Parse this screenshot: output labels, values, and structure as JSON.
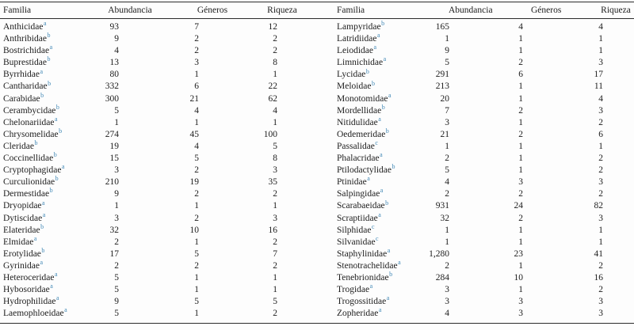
{
  "table": {
    "columns": [
      "Familia",
      "Abundancia",
      "Géneros",
      "Riqueza"
    ],
    "superscript_color": "#3f87b5",
    "left_rows": [
      {
        "familia": "Anthicidae",
        "sup": "a",
        "abundancia": "93",
        "generos": "7",
        "riqueza": "12"
      },
      {
        "familia": "Anthribidae",
        "sup": "b",
        "abundancia": "9",
        "generos": "2",
        "riqueza": "2"
      },
      {
        "familia": "Bostrichidae",
        "sup": "a",
        "abundancia": "4",
        "generos": "2",
        "riqueza": "2"
      },
      {
        "familia": "Buprestidae",
        "sup": "b",
        "abundancia": "13",
        "generos": "3",
        "riqueza": "8"
      },
      {
        "familia": "Byrrhidae",
        "sup": "a",
        "abundancia": "80",
        "generos": "1",
        "riqueza": "1"
      },
      {
        "familia": "Cantharidae",
        "sup": "b",
        "abundancia": "332",
        "generos": "6",
        "riqueza": "22"
      },
      {
        "familia": "Carabidae",
        "sup": "b",
        "abundancia": "300",
        "generos": "21",
        "riqueza": "62"
      },
      {
        "familia": "Cerambycidae",
        "sup": "b",
        "abundancia": "5",
        "generos": "4",
        "riqueza": "4"
      },
      {
        "familia": "Chelonariidae",
        "sup": "a",
        "abundancia": "1",
        "generos": "1",
        "riqueza": "1"
      },
      {
        "familia": "Chrysomelidae",
        "sup": "b",
        "abundancia": "274",
        "generos": "45",
        "riqueza": "100"
      },
      {
        "familia": "Cleridae",
        "sup": "b",
        "abundancia": "19",
        "generos": "4",
        "riqueza": "5"
      },
      {
        "familia": "Coccinellidae",
        "sup": "b",
        "abundancia": "15",
        "generos": "5",
        "riqueza": "8"
      },
      {
        "familia": "Cryptophagidae",
        "sup": "a",
        "abundancia": "3",
        "generos": "2",
        "riqueza": "3"
      },
      {
        "familia": "Curculionidae",
        "sup": "b",
        "abundancia": "210",
        "generos": "19",
        "riqueza": "35"
      },
      {
        "familia": "Dermestidae",
        "sup": "b",
        "abundancia": "9",
        "generos": "2",
        "riqueza": "2"
      },
      {
        "familia": "Dryopidae",
        "sup": "a",
        "abundancia": "1",
        "generos": "1",
        "riqueza": "1"
      },
      {
        "familia": "Dytiscidae",
        "sup": "a",
        "abundancia": "3",
        "generos": "2",
        "riqueza": "3"
      },
      {
        "familia": "Elateridae",
        "sup": "b",
        "abundancia": "32",
        "generos": "10",
        "riqueza": "16"
      },
      {
        "familia": "Elmidae",
        "sup": "a",
        "abundancia": "2",
        "generos": "1",
        "riqueza": "2"
      },
      {
        "familia": "Erotylidae",
        "sup": "b",
        "abundancia": "17",
        "generos": "5",
        "riqueza": "7"
      },
      {
        "familia": "Gyrinidae",
        "sup": "a",
        "abundancia": "2",
        "generos": "2",
        "riqueza": "2"
      },
      {
        "familia": "Heteroceridae",
        "sup": "a",
        "abundancia": "5",
        "generos": "1",
        "riqueza": "1"
      },
      {
        "familia": "Hybosoridae",
        "sup": "a",
        "abundancia": "5",
        "generos": "1",
        "riqueza": "1"
      },
      {
        "familia": "Hydrophilidae",
        "sup": "a",
        "abundancia": "9",
        "generos": "5",
        "riqueza": "5"
      },
      {
        "familia": "Laemophloeidae",
        "sup": "a",
        "abundancia": "5",
        "generos": "1",
        "riqueza": "2"
      }
    ],
    "right_rows": [
      {
        "familia": "Lampyridae",
        "sup": "b",
        "abundancia": "165",
        "generos": "4",
        "riqueza": "4"
      },
      {
        "familia": "Latridiidae",
        "sup": "a",
        "abundancia": "1",
        "generos": "1",
        "riqueza": "1"
      },
      {
        "familia": "Leiodidae",
        "sup": "a",
        "abundancia": "9",
        "generos": "1",
        "riqueza": "1"
      },
      {
        "familia": "Limnichidae",
        "sup": "a",
        "abundancia": "5",
        "generos": "2",
        "riqueza": "3"
      },
      {
        "familia": "Lycidae",
        "sup": "b",
        "abundancia": "291",
        "generos": "6",
        "riqueza": "17"
      },
      {
        "familia": "Meloidae",
        "sup": "b",
        "abundancia": "213",
        "generos": "1",
        "riqueza": "11"
      },
      {
        "familia": "Monotomidae",
        "sup": "a",
        "abundancia": "20",
        "generos": "1",
        "riqueza": "4"
      },
      {
        "familia": "Mordellidae",
        "sup": "b",
        "abundancia": "7",
        "generos": "2",
        "riqueza": "3"
      },
      {
        "familia": "Nitidulidae",
        "sup": "a",
        "abundancia": "3",
        "generos": "1",
        "riqueza": "2"
      },
      {
        "familia": "Oedemeridae",
        "sup": "b",
        "abundancia": "21",
        "generos": "2",
        "riqueza": "6"
      },
      {
        "familia": "Passalidae",
        "sup": "c",
        "abundancia": "1",
        "generos": "1",
        "riqueza": "1"
      },
      {
        "familia": "Phalacridae",
        "sup": "a",
        "abundancia": "2",
        "generos": "1",
        "riqueza": "2"
      },
      {
        "familia": "Ptilodactylidae",
        "sup": "b",
        "abundancia": "5",
        "generos": "1",
        "riqueza": "2"
      },
      {
        "familia": "Ptinidae",
        "sup": "a",
        "abundancia": "4",
        "generos": "3",
        "riqueza": "3"
      },
      {
        "familia": "Salpingidae",
        "sup": "a",
        "abundancia": "2",
        "generos": "2",
        "riqueza": "2"
      },
      {
        "familia": "Scarabaeidae",
        "sup": "b",
        "abundancia": "931",
        "generos": "24",
        "riqueza": "82"
      },
      {
        "familia": "Scraptiidae",
        "sup": "a",
        "abundancia": "32",
        "generos": "2",
        "riqueza": "3"
      },
      {
        "familia": "Silphidae",
        "sup": "c",
        "abundancia": "1",
        "generos": "1",
        "riqueza": "1"
      },
      {
        "familia": "Silvanidae",
        "sup": "c",
        "abundancia": "1",
        "generos": "1",
        "riqueza": "1"
      },
      {
        "familia": "Staphylinidae",
        "sup": "a",
        "abundancia": "1,280",
        "generos": "23",
        "riqueza": "41"
      },
      {
        "familia": "Stenotrachelidae",
        "sup": "a",
        "abundancia": "2",
        "generos": "1",
        "riqueza": "2"
      },
      {
        "familia": "Tenebrionidae",
        "sup": "b",
        "abundancia": "284",
        "generos": "10",
        "riqueza": "16"
      },
      {
        "familia": "Trogidae",
        "sup": "a",
        "abundancia": "3",
        "generos": "1",
        "riqueza": "2"
      },
      {
        "familia": "Trogossitidae",
        "sup": "a",
        "abundancia": "3",
        "generos": "3",
        "riqueza": "3"
      },
      {
        "familia": "Zopheridae",
        "sup": "a",
        "abundancia": "4",
        "generos": "3",
        "riqueza": "3"
      }
    ]
  }
}
